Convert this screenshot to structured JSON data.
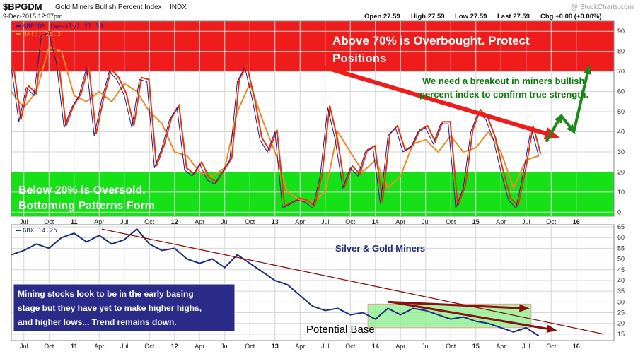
{
  "header": {
    "symbol": "$BPGDM",
    "name": "Gold Miners Bullish Percent Index",
    "exchange": "INDX",
    "date": "9-Dec-2015 12:07pm",
    "brand": "@ StockCharts.com",
    "quote": {
      "open": "Open 27.59",
      "high": "High 27.59",
      "low": "Low 27.59",
      "last": "Last 27.59",
      "chg": "Chg +0.00 (+0.00%)"
    }
  },
  "colors": {
    "red_zone": "#f01c1c",
    "green_zone": "#16e016",
    "bp_line": "#e8350a",
    "ma_line": "#f08a28",
    "blue_line": "#1a1a9c",
    "gdx_line": "#1f2d7e",
    "annotation_green": "#0a7a0a",
    "trend_red": "#8b0f0f",
    "base_fill": "#88ee88"
  },
  "chart_data": [
    {
      "type": "line",
      "title": "",
      "x_ticks": [
        "Jul",
        "Oct",
        "11",
        "Apr",
        "Jul",
        "Oct",
        "12",
        "Apr",
        "Jul",
        "Oct",
        "13",
        "Apr",
        "Jul",
        "Oct",
        "14",
        "Apr",
        "Jul",
        "Oct",
        "15",
        "Apr",
        "Jul",
        "Oct",
        "16"
      ],
      "y_ticks": [
        0,
        10,
        20,
        30,
        40,
        50,
        60,
        70,
        80,
        90
      ],
      "ylim": [
        -2,
        95
      ],
      "zones": [
        {
          "from": 70,
          "to": 95,
          "label": "overbought"
        },
        {
          "from": -2,
          "to": 20,
          "label": "oversold"
        }
      ],
      "series": [
        {
          "name": "$BPGDM (Weekly)",
          "legend": "$BPGDM (Weekly) 27.59",
          "x": [
            0.0,
            0.3,
            0.6,
            0.9,
            1.2,
            1.5,
            1.8,
            2.1,
            2.4,
            2.7,
            3.0,
            3.3,
            3.6,
            3.9,
            4.2,
            4.5,
            4.8,
            5.1,
            5.4,
            5.7,
            6.0,
            6.3,
            6.6,
            6.9,
            7.2,
            7.5,
            7.8,
            8.1,
            8.4,
            8.7,
            9.0,
            9.3,
            9.6,
            9.9,
            10.2,
            10.5,
            10.8,
            11.1,
            11.4,
            11.7,
            12.0,
            12.3,
            12.6,
            12.9,
            13.2,
            13.5,
            13.8,
            14.1,
            14.4,
            14.7,
            15.0,
            15.3,
            15.6,
            15.9,
            16.2,
            16.5,
            16.8,
            17.1,
            17.4,
            17.7,
            18.0,
            18.3,
            18.6,
            18.9,
            19.2,
            19.5,
            19.8,
            20.1,
            20.4,
            20.7,
            21.0
          ],
          "y": [
            72,
            45,
            62,
            58,
            88,
            89,
            74,
            42,
            52,
            58,
            72,
            38,
            56,
            70,
            66,
            58,
            42,
            66,
            65,
            22,
            32,
            46,
            52,
            21,
            18,
            24,
            16,
            14,
            20,
            26,
            65,
            72,
            56,
            36,
            30,
            40,
            2,
            4,
            6,
            5,
            2,
            18,
            52,
            36,
            12,
            22,
            18,
            30,
            32,
            4,
            38,
            42,
            30,
            32,
            40,
            42,
            34,
            44,
            44,
            2,
            12,
            40,
            50,
            46,
            36,
            20,
            6,
            2,
            20,
            42,
            28
          ],
          "legend_color": "#1a1a9c"
        },
        {
          "name": "MA(5)",
          "legend": "MA(5) 28.3",
          "x": [
            0.0,
            0.5,
            1.0,
            1.5,
            2.0,
            2.5,
            3.0,
            3.5,
            4.0,
            4.5,
            5.0,
            5.5,
            6.0,
            6.5,
            7.0,
            7.5,
            8.0,
            8.5,
            9.0,
            9.5,
            10.0,
            10.5,
            11.0,
            11.5,
            12.0,
            12.5,
            13.0,
            13.5,
            14.0,
            14.5,
            15.0,
            15.5,
            16.0,
            16.5,
            17.0,
            17.5,
            18.0,
            18.5,
            19.0,
            19.5,
            20.0,
            20.5,
            21.0
          ],
          "y": [
            60,
            52,
            60,
            82,
            80,
            58,
            55,
            60,
            55,
            64,
            60,
            50,
            44,
            30,
            28,
            20,
            18,
            22,
            50,
            64,
            46,
            30,
            10,
            6,
            5,
            10,
            40,
            30,
            20,
            26,
            12,
            18,
            34,
            36,
            30,
            38,
            30,
            32,
            40,
            30,
            12,
            26,
            28
          ],
          "legend_color": "#f08a28"
        }
      ],
      "annotations": [
        {
          "text": "Above 70% is Overbought. Protect",
          "color": "#ffffff"
        },
        {
          "text": "Positions",
          "color": "#ffffff"
        },
        {
          "text": "We need a breakout in miners bullish",
          "color": "#0a7a0a"
        },
        {
          "text": "percent index to confirm true strength.",
          "color": "#0a7a0a"
        },
        {
          "text": "Below 20% is Oversold.",
          "color": "#ffffff"
        },
        {
          "text": "Bottoming Patterns Form",
          "color": "#ffffff"
        }
      ],
      "trendline": {
        "from": [
          12.5,
          72
        ],
        "to": [
          21.6,
          38
        ],
        "color": "#f01c1c"
      },
      "projection": {
        "x": [
          21.3,
          21.9,
          22.4,
          23.0
        ],
        "y": [
          35,
          48,
          40,
          72
        ],
        "color": "#1b8a1b"
      }
    },
    {
      "type": "line",
      "title": "",
      "x_ticks": [
        "Jul",
        "Oct",
        "11",
        "Apr",
        "Jul",
        "Oct",
        "12",
        "Apr",
        "Jul",
        "Oct",
        "13",
        "Apr",
        "Jul",
        "Oct",
        "14",
        "Apr",
        "Jul",
        "Oct",
        "15",
        "Apr",
        "Jul",
        "Oct",
        "16"
      ],
      "y_ticks": [
        15,
        20,
        25,
        30,
        35,
        40,
        45,
        50,
        55,
        60,
        65
      ],
      "ylim": [
        12,
        66
      ],
      "series": [
        {
          "name": "GDX",
          "legend": "GDX 14.25",
          "x": [
            0.0,
            0.5,
            1.0,
            1.5,
            2.0,
            2.5,
            3.0,
            3.5,
            4.0,
            4.5,
            5.0,
            5.5,
            6.0,
            6.5,
            7.0,
            7.5,
            8.0,
            8.5,
            9.0,
            9.5,
            10.0,
            10.5,
            11.0,
            11.5,
            12.0,
            12.5,
            13.0,
            13.5,
            14.0,
            14.5,
            15.0,
            15.5,
            16.0,
            16.5,
            17.0,
            17.5,
            18.0,
            18.5,
            19.0,
            19.5,
            20.0,
            20.5,
            21.0
          ],
          "y": [
            52,
            54,
            57,
            55,
            60,
            62,
            58,
            61,
            57,
            59,
            64,
            57,
            54,
            55,
            50,
            48,
            50,
            46,
            52,
            48,
            44,
            40,
            38,
            33,
            28,
            26,
            27,
            24,
            25,
            22,
            27,
            24,
            27,
            26,
            24,
            22,
            23,
            21,
            20,
            18,
            16,
            18,
            14.25
          ],
          "legend_color": "#1f2d7e"
        }
      ],
      "annotations": [
        {
          "text": "Silver & Gold Miners",
          "color": "#1f2d7e"
        },
        {
          "text": "Mining stocks look to be in the early basing",
          "color": "#ffffff"
        },
        {
          "text": "stage but they have yet to make higher highs,",
          "color": "#ffffff"
        },
        {
          "text": "and higher lows... Trend remains down.",
          "color": "#ffffff"
        },
        {
          "text": "Potential Base",
          "color": "#000000"
        }
      ],
      "base_zone": {
        "x": [
          14.2,
          20.7
        ],
        "y": [
          18,
          29
        ]
      },
      "trendlines": [
        {
          "from": [
            3.6,
            64
          ],
          "to": [
            23.6,
            15
          ]
        },
        {
          "from": [
            15.0,
            30
          ],
          "to": [
            20.5,
            27
          ]
        },
        {
          "from": [
            15.1,
            30
          ],
          "to": [
            21.6,
            17
          ]
        }
      ]
    }
  ]
}
